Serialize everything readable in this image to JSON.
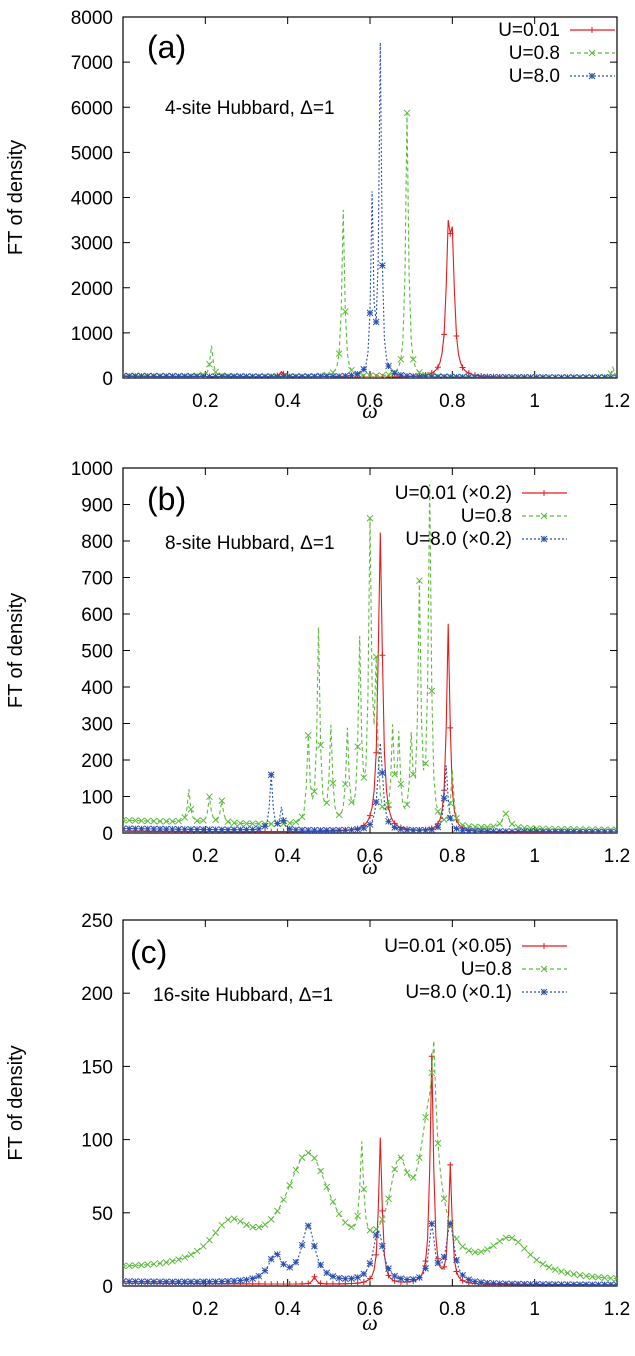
{
  "figure": {
    "panels": [
      {
        "panel_label": "(a)",
        "annotation": "4-site Hubbard, Δ=1",
        "ylabel": "FT of density",
        "xlabel": "ω",
        "legend": [
          "U=0.01",
          "U=0.8",
          "U=8.0"
        ]
      },
      {
        "panel_label": "(b)",
        "annotation": "8-site Hubbard, Δ=1",
        "ylabel": "FT of density",
        "xlabel": "ω",
        "legend": [
          "U=0.01 (×0.2)",
          "U=0.8",
          "U=8.0 (×0.2)"
        ]
      },
      {
        "panel_label": "(c)",
        "annotation": "16-site Hubbard, Δ=1",
        "ylabel": "FT of density",
        "xlabel": "ω",
        "legend": [
          "U=0.01 (×0.05)",
          "U=0.8",
          "U=8.0 (×0.1)"
        ]
      }
    ]
  },
  "chart_data": [
    {
      "type": "line",
      "title": "",
      "panel_label": "(a)",
      "annotation": "4-site Hubbard, Δ=1",
      "xlabel": "ω",
      "ylabel": "FT of density",
      "xlim": [
        0,
        1.2
      ],
      "ylim": [
        0,
        8000
      ],
      "xticks": [
        "0.2",
        "0.4",
        "0.6",
        "0.8",
        "1",
        "1.2"
      ],
      "yticks": [
        "0",
        "1000",
        "2000",
        "3000",
        "4000",
        "5000",
        "6000",
        "7000",
        "8000"
      ],
      "grid": false,
      "legend_position": "top-right",
      "series": [
        {
          "name": "U=0.01",
          "color": "#e41a1c",
          "dash": "solid",
          "marker": "plus",
          "peaks": [
            {
              "x": 0.385,
              "a": 120,
              "w": 0.006
            },
            {
              "x": 0.79,
              "a": 2800,
              "w": 0.006
            },
            {
              "x": 0.8,
              "a": 2600,
              "w": 0.006
            }
          ],
          "background": 30
        },
        {
          "name": "U=0.8",
          "color": "#5dbb3d",
          "dash": "4,3",
          "marker": "x",
          "peaks": [
            {
              "x": 0.215,
              "a": 680,
              "w": 0.004
            },
            {
              "x": 0.535,
              "a": 3700,
              "w": 0.004
            },
            {
              "x": 0.69,
              "a": 5850,
              "w": 0.004
            },
            {
              "x": 1.19,
              "a": 220,
              "w": 0.004
            }
          ],
          "background": 50
        },
        {
          "name": "U=8.0",
          "color": "#2a4fb0",
          "dash": "2,2",
          "marker": "star",
          "peaks": [
            {
              "x": 0.605,
              "a": 3900,
              "w": 0.0035
            },
            {
              "x": 0.625,
              "a": 7300,
              "w": 0.0035
            }
          ],
          "background": 40
        }
      ]
    },
    {
      "type": "line",
      "title": "",
      "panel_label": "(b)",
      "annotation": "8-site Hubbard, Δ=1",
      "xlabel": "ω",
      "ylabel": "FT of density",
      "xlim": [
        0,
        1.2
      ],
      "ylim": [
        0,
        1000
      ],
      "xticks": [
        "0.2",
        "0.4",
        "0.6",
        "0.8",
        "1",
        "1.2"
      ],
      "yticks": [
        "0",
        "100",
        "200",
        "300",
        "400",
        "500",
        "600",
        "700",
        "800",
        "900",
        "1000"
      ],
      "grid": false,
      "legend_position": "top-right",
      "series": [
        {
          "name": "U=0.01 (×0.2)",
          "color": "#e41a1c",
          "dash": "solid",
          "marker": "plus",
          "peaks": [
            {
              "x": 0.625,
              "a": 820,
              "w": 0.006
            },
            {
              "x": 0.79,
              "a": 570,
              "w": 0.005
            }
          ],
          "background": 5
        },
        {
          "name": "U=0.8",
          "color": "#5dbb3d",
          "dash": "4,3",
          "marker": "x",
          "peaks": [
            {
              "x": 0.16,
              "a": 90,
              "w": 0.004
            },
            {
              "x": 0.21,
              "a": 70,
              "w": 0.004
            },
            {
              "x": 0.24,
              "a": 60,
              "w": 0.004
            },
            {
              "x": 0.45,
              "a": 230,
              "w": 0.004
            },
            {
              "x": 0.475,
              "a": 530,
              "w": 0.004
            },
            {
              "x": 0.505,
              "a": 260,
              "w": 0.004
            },
            {
              "x": 0.545,
              "a": 250,
              "w": 0.004
            },
            {
              "x": 0.575,
              "a": 490,
              "w": 0.004
            },
            {
              "x": 0.6,
              "a": 800,
              "w": 0.004
            },
            {
              "x": 0.615,
              "a": 400,
              "w": 0.004
            },
            {
              "x": 0.655,
              "a": 250,
              "w": 0.004
            },
            {
              "x": 0.67,
              "a": 230,
              "w": 0.004
            },
            {
              "x": 0.7,
              "a": 220,
              "w": 0.004
            },
            {
              "x": 0.72,
              "a": 640,
              "w": 0.004
            },
            {
              "x": 0.745,
              "a": 920,
              "w": 0.004
            },
            {
              "x": 0.8,
              "a": 150,
              "w": 0.004
            },
            {
              "x": 0.93,
              "a": 40,
              "w": 0.01
            }
          ],
          "background": 35
        },
        {
          "name": "U=8.0 (×0.2)",
          "color": "#2a4fb0",
          "dash": "2,2",
          "marker": "star",
          "peaks": [
            {
              "x": 0.36,
              "a": 150,
              "w": 0.004
            },
            {
              "x": 0.385,
              "a": 60,
              "w": 0.004
            },
            {
              "x": 0.625,
              "a": 240,
              "w": 0.007
            },
            {
              "x": 0.785,
              "a": 180,
              "w": 0.005
            }
          ],
          "background": 12
        }
      ]
    },
    {
      "type": "line",
      "title": "",
      "panel_label": "(c)",
      "annotation": "16-site Hubbard, Δ=1",
      "xlabel": "ω",
      "ylabel": "FT of density",
      "xlim": [
        0,
        1.2
      ],
      "ylim": [
        0,
        250
      ],
      "xticks": [
        "0.2",
        "0.4",
        "0.6",
        "0.8",
        "1",
        "1.2"
      ],
      "yticks": [
        "0",
        "50",
        "100",
        "150",
        "200",
        "250"
      ],
      "grid": false,
      "legend_position": "top-right",
      "series": [
        {
          "name": "U=0.01 (×0.05)",
          "color": "#e41a1c",
          "dash": "solid",
          "marker": "plus",
          "peaks": [
            {
              "x": 0.465,
              "a": 5,
              "w": 0.005
            },
            {
              "x": 0.625,
              "a": 100,
              "w": 0.005
            },
            {
              "x": 0.75,
              "a": 155,
              "w": 0.005
            },
            {
              "x": 0.795,
              "a": 80,
              "w": 0.005
            }
          ],
          "background": 2
        },
        {
          "name": "U=0.8",
          "color": "#5dbb3d",
          "dash": "4,3",
          "marker": "x",
          "peaks": [
            {
              "x": 0.26,
              "a": 28,
              "w": 0.06
            },
            {
              "x": 0.45,
              "a": 80,
              "w": 0.07
            },
            {
              "x": 0.58,
              "a": 65,
              "w": 0.005
            },
            {
              "x": 0.67,
              "a": 60,
              "w": 0.03
            },
            {
              "x": 0.745,
              "a": 100,
              "w": 0.03
            },
            {
              "x": 0.755,
              "a": 60,
              "w": 0.005
            },
            {
              "x": 0.94,
              "a": 25,
              "w": 0.06
            }
          ],
          "background": 10
        },
        {
          "name": "U=8.0 (×0.1)",
          "color": "#2a4fb0",
          "dash": "2,2",
          "marker": "star",
          "peaks": [
            {
              "x": 0.37,
              "a": 18,
              "w": 0.02
            },
            {
              "x": 0.45,
              "a": 38,
              "w": 0.02
            },
            {
              "x": 0.62,
              "a": 36,
              "w": 0.015
            },
            {
              "x": 0.75,
              "a": 38,
              "w": 0.008
            },
            {
              "x": 0.795,
              "a": 40,
              "w": 0.012
            }
          ],
          "background": 3
        }
      ]
    }
  ]
}
